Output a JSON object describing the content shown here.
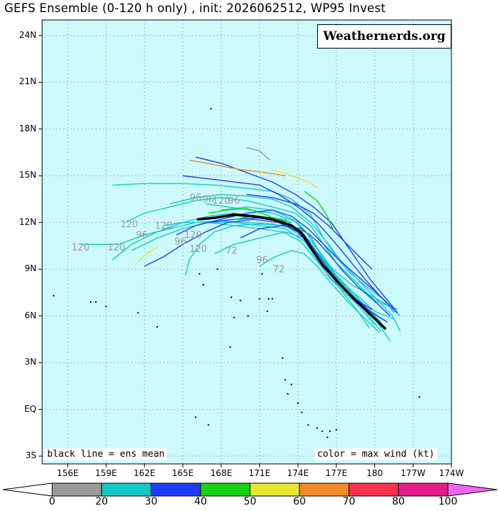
{
  "title": "GEFS Ensemble (0-120 h only) , init: 2026062512, WP95 Invest",
  "watermark": "Weathernerds.org",
  "legend_mean": "black line = ens mean",
  "legend_color": "color = max wind (kt)",
  "map": {
    "lon_min": 154,
    "lon_max": 186,
    "lat_min": -3.5,
    "lat_max": 25,
    "ocean_color": "#ccfafc",
    "grid_lats": [
      -3,
      0,
      3,
      6,
      9,
      12,
      15,
      18,
      21,
      24
    ],
    "grid_lons": [
      156,
      159,
      162,
      165,
      168,
      171,
      174,
      177,
      180,
      183,
      186
    ]
  },
  "lat_labels": [
    "24N",
    "21N",
    "18N",
    "15N",
    "12N",
    "9N",
    "6N",
    "3N",
    "EQ",
    "3S"
  ],
  "lon_labels": [
    "156E",
    "159E",
    "162E",
    "165E",
    "168E",
    "171E",
    "174E",
    "177E",
    "180",
    "177W",
    "174W"
  ],
  "colorbar": {
    "labels": [
      "0",
      "20",
      "30",
      "40",
      "50",
      "60",
      "70",
      "80",
      "100"
    ],
    "colors": [
      "#9a9a9a",
      "#14c8c8",
      "#1e3cff",
      "#14d214",
      "#e6e632",
      "#f08c28",
      "#fa3250",
      "#e61e8c",
      "#f064f0"
    ]
  },
  "hour_labels": [
    {
      "text": "120",
      "lon": 157.0,
      "lat": 10.2
    },
    {
      "text": "120",
      "lon": 159.8,
      "lat": 10.2
    },
    {
      "text": "120",
      "lon": 160.8,
      "lat": 11.7
    },
    {
      "text": "96",
      "lon": 161.8,
      "lat": 11.0
    },
    {
      "text": "120",
      "lon": 163.5,
      "lat": 11.6
    },
    {
      "text": "96",
      "lon": 164.8,
      "lat": 10.6
    },
    {
      "text": "120",
      "lon": 165.8,
      "lat": 11.0
    },
    {
      "text": "120",
      "lon": 166.2,
      "lat": 10.1
    },
    {
      "text": "96",
      "lon": 166.0,
      "lat": 13.4
    },
    {
      "text": "96",
      "lon": 167.0,
      "lat": 13.3
    },
    {
      "text": "120",
      "lon": 168.0,
      "lat": 13.2
    },
    {
      "text": "96",
      "lon": 169.0,
      "lat": 13.2
    },
    {
      "text": "72",
      "lon": 168.8,
      "lat": 10.0
    },
    {
      "text": "96",
      "lon": 171.2,
      "lat": 9.4
    },
    {
      "text": "72",
      "lon": 172.5,
      "lat": 8.8
    }
  ],
  "ensemble_mean": [
    [
      166.2,
      12.2
    ],
    [
      167.5,
      12.3
    ],
    [
      169.0,
      12.5
    ],
    [
      170.5,
      12.4
    ],
    [
      172.0,
      12.2
    ],
    [
      173.5,
      11.8
    ],
    [
      174.3,
      11.3
    ],
    [
      175.0,
      10.4
    ],
    [
      176.0,
      9.2
    ],
    [
      177.2,
      8.1
    ],
    [
      178.5,
      7.0
    ],
    [
      179.8,
      6.0
    ],
    [
      180.8,
      5.2
    ]
  ],
  "tracks": [
    {
      "color": "#14c8c8",
      "points": [
        [
          159.5,
          14.4
        ],
        [
          162,
          14.5
        ],
        [
          165,
          14.5
        ],
        [
          167.5,
          14.4
        ],
        [
          170,
          14.2
        ],
        [
          172,
          14.0
        ],
        [
          173.5,
          13.5
        ],
        [
          175,
          12.5
        ],
        [
          176,
          11.0
        ],
        [
          177,
          9.8
        ],
        [
          178,
          8.8
        ],
        [
          179.5,
          7.8
        ],
        [
          180.8,
          7.0
        ],
        [
          181.5,
          6.2
        ]
      ]
    },
    {
      "color": "#14c8c8",
      "points": [
        [
          157,
          10.6
        ],
        [
          160,
          10.6
        ],
        [
          162,
          11.2
        ],
        [
          164,
          11.6
        ],
        [
          166,
          12.0
        ],
        [
          168,
          12.1
        ],
        [
          170,
          12.0
        ],
        [
          172,
          11.9
        ],
        [
          173.8,
          11.6
        ],
        [
          175,
          10.8
        ],
        [
          176,
          9.8
        ],
        [
          177,
          8.6
        ],
        [
          178.2,
          7.6
        ],
        [
          179.5,
          6.4
        ],
        [
          180.5,
          5.6
        ]
      ]
    },
    {
      "color": "#14c8c8",
      "points": [
        [
          159.5,
          9.6
        ],
        [
          161,
          10.6
        ],
        [
          163,
          11.4
        ],
        [
          165,
          12.0
        ],
        [
          167,
          12.4
        ],
        [
          169,
          12.6
        ],
        [
          171,
          12.4
        ],
        [
          173,
          12.2
        ],
        [
          174.5,
          11.2
        ],
        [
          175.5,
          10.0
        ],
        [
          176.5,
          9.0
        ],
        [
          177.5,
          8.0
        ],
        [
          178.8,
          7.2
        ],
        [
          180,
          6.3
        ],
        [
          181.5,
          5.8
        ]
      ]
    },
    {
      "color": "#14c8c8",
      "points": [
        [
          160.5,
          12.0
        ],
        [
          162,
          12.6
        ],
        [
          164,
          13.0
        ],
        [
          166,
          13.4
        ],
        [
          168,
          13.6
        ],
        [
          170,
          13.4
        ],
        [
          172,
          13.0
        ],
        [
          173.8,
          12.6
        ],
        [
          175,
          11.8
        ],
        [
          176,
          10.6
        ],
        [
          177,
          9.4
        ],
        [
          178,
          8.6
        ],
        [
          179,
          7.8
        ],
        [
          180,
          7.0
        ],
        [
          181.8,
          6.4
        ]
      ]
    },
    {
      "color": "#14c8c8",
      "points": [
        [
          161,
          10.2
        ],
        [
          163,
          11.0
        ],
        [
          165,
          11.6
        ],
        [
          167,
          12.0
        ],
        [
          169,
          12.0
        ],
        [
          171,
          11.8
        ],
        [
          173,
          11.6
        ],
        [
          174.5,
          10.8
        ],
        [
          175.5,
          9.6
        ],
        [
          176.5,
          8.4
        ],
        [
          177.8,
          7.4
        ],
        [
          179,
          6.6
        ],
        [
          180.5,
          5.0
        ]
      ]
    },
    {
      "color": "#14c8c8",
      "points": [
        [
          165.2,
          8.6
        ],
        [
          165.5,
          9.6
        ],
        [
          166.3,
          10.6
        ],
        [
          167.5,
          11.4
        ],
        [
          169,
          11.8
        ],
        [
          171,
          11.9
        ],
        [
          173,
          11.8
        ],
        [
          174.5,
          11.0
        ],
        [
          175.8,
          9.8
        ],
        [
          177,
          8.6
        ],
        [
          178,
          7.6
        ],
        [
          179.2,
          6.6
        ],
        [
          180.2,
          5.6
        ],
        [
          181.2,
          4.4
        ]
      ]
    },
    {
      "color": "#14c8c8",
      "points": [
        [
          164,
          13.2
        ],
        [
          166,
          13.6
        ],
        [
          168,
          13.8
        ],
        [
          170,
          13.7
        ],
        [
          172,
          13.5
        ],
        [
          173.5,
          13.0
        ],
        [
          175,
          12.0
        ],
        [
          176.2,
          10.8
        ],
        [
          177.3,
          9.6
        ],
        [
          178.6,
          8.4
        ],
        [
          180,
          7.2
        ],
        [
          181.4,
          6.0
        ],
        [
          182,
          5.0
        ]
      ]
    },
    {
      "color": "#14c8c8",
      "points": [
        [
          163.5,
          11.8
        ],
        [
          165,
          12.0
        ],
        [
          167,
          12.0
        ],
        [
          169,
          11.8
        ],
        [
          171,
          11.6
        ],
        [
          172.8,
          11.4
        ],
        [
          174.2,
          10.8
        ],
        [
          175.4,
          9.6
        ],
        [
          176.6,
          8.4
        ],
        [
          177.8,
          7.4
        ],
        [
          179,
          6.4
        ],
        [
          180,
          5.4
        ]
      ]
    },
    {
      "color": "#14c8c8",
      "points": [
        [
          167.5,
          10.0
        ],
        [
          169,
          10.6
        ],
        [
          171,
          11.0
        ],
        [
          173,
          11.4
        ],
        [
          174.5,
          11.0
        ],
        [
          175.8,
          9.8
        ],
        [
          177,
          8.8
        ],
        [
          178.2,
          8.0
        ],
        [
          179.5,
          7.4
        ],
        [
          180.8,
          6.8
        ],
        [
          182,
          6.0
        ]
      ]
    },
    {
      "color": "#14c8c8",
      "points": [
        [
          168,
          12.8
        ],
        [
          170,
          13.0
        ],
        [
          172,
          12.8
        ],
        [
          173.6,
          12.2
        ],
        [
          174.8,
          11.2
        ],
        [
          175.8,
          10.0
        ],
        [
          176.8,
          8.8
        ],
        [
          178,
          7.6
        ],
        [
          179.2,
          6.6
        ],
        [
          180.6,
          5.8
        ]
      ]
    },
    {
      "color": "#14c8c8",
      "points": [
        [
          171,
          9.2
        ],
        [
          172.2,
          9.8
        ],
        [
          173.5,
          10.2
        ],
        [
          174.5,
          10.0
        ],
        [
          175.5,
          9.2
        ],
        [
          176.5,
          8.2
        ],
        [
          177.8,
          7.0
        ],
        [
          179.0,
          6.0
        ],
        [
          180.3,
          5.0
        ]
      ]
    },
    {
      "color": "#14c8c8",
      "points": [
        [
          166.8,
          13.2
        ],
        [
          168.5,
          13.0
        ],
        [
          170.2,
          12.8
        ],
        [
          172,
          12.6
        ],
        [
          174,
          12.0
        ],
        [
          175.2,
          10.8
        ],
        [
          176.0,
          9.6
        ],
        [
          176.8,
          8.4
        ],
        [
          177.6,
          7.4
        ],
        [
          178.6,
          6.4
        ],
        [
          179.6,
          5.2
        ]
      ]
    },
    {
      "color": "#1e3cff",
      "points": [
        [
          165,
          15.0
        ],
        [
          167,
          14.8
        ],
        [
          169,
          14.6
        ],
        [
          171,
          14.4
        ],
        [
          172.5,
          13.8
        ],
        [
          174,
          13.0
        ],
        [
          175.5,
          12.0
        ],
        [
          176.8,
          10.8
        ],
        [
          178,
          9.6
        ],
        [
          179.2,
          8.4
        ],
        [
          180.5,
          7.2
        ],
        [
          181.8,
          6.2
        ]
      ]
    },
    {
      "color": "#1e3cff",
      "points": [
        [
          166,
          16.2
        ],
        [
          168,
          15.8
        ],
        [
          170,
          15.2
        ],
        [
          172,
          14.6
        ],
        [
          173.8,
          13.8
        ],
        [
          175.2,
          13.0
        ],
        [
          176.6,
          12.0
        ],
        [
          177.6,
          10.8
        ],
        [
          178.6,
          9.6
        ],
        [
          179.6,
          8.4
        ],
        [
          180.6,
          7.4
        ],
        [
          181.6,
          6.4
        ]
      ]
    },
    {
      "color": "#1e3cff",
      "points": [
        [
          164.5,
          11.2
        ],
        [
          166,
          11.8
        ],
        [
          168,
          12.2
        ],
        [
          170,
          12.6
        ],
        [
          172,
          12.8
        ],
        [
          173.5,
          12.4
        ],
        [
          174.8,
          11.6
        ],
        [
          176,
          10.6
        ],
        [
          177.2,
          9.6
        ],
        [
          178.6,
          8.6
        ],
        [
          180,
          7.6
        ],
        [
          181,
          6.8
        ]
      ]
    },
    {
      "color": "#1e3cff",
      "points": [
        [
          167,
          12.0
        ],
        [
          169,
          12.2
        ],
        [
          171,
          12.3
        ],
        [
          172.8,
          12.1
        ],
        [
          174.2,
          11.5
        ],
        [
          175.2,
          10.4
        ],
        [
          176.2,
          9.2
        ],
        [
          177.4,
          8.0
        ],
        [
          178.6,
          7.0
        ],
        [
          179.8,
          6.2
        ],
        [
          181,
          5.6
        ]
      ]
    },
    {
      "color": "#1e3cff",
      "points": [
        [
          162,
          9.2
        ],
        [
          163.5,
          9.8
        ],
        [
          165,
          10.6
        ],
        [
          166.8,
          11.4
        ],
        [
          168.5,
          12.0
        ],
        [
          170.5,
          12.2
        ],
        [
          172.5,
          12.0
        ],
        [
          174,
          11.4
        ],
        [
          175,
          10.4
        ],
        [
          176,
          9.2
        ],
        [
          177,
          8.2
        ],
        [
          178.3,
          7.2
        ],
        [
          179.8,
          6.4
        ]
      ]
    },
    {
      "color": "#1e3cff",
      "points": [
        [
          170,
          13.8
        ],
        [
          172,
          13.6
        ],
        [
          173.8,
          13.2
        ],
        [
          175.2,
          12.6
        ],
        [
          176.4,
          11.8
        ],
        [
          177.6,
          10.8
        ],
        [
          178.8,
          9.8
        ],
        [
          179.8,
          9.0
        ]
      ]
    },
    {
      "color": "#1e3cff",
      "points": [
        [
          169.5,
          11.0
        ],
        [
          171,
          11.6
        ],
        [
          172.8,
          11.8
        ],
        [
          174.3,
          11.6
        ],
        [
          175.5,
          10.8
        ],
        [
          176.6,
          9.8
        ],
        [
          177.6,
          8.8
        ],
        [
          178.8,
          7.8
        ],
        [
          180.2,
          6.8
        ],
        [
          181.2,
          6.0
        ]
      ]
    },
    {
      "color": "#14d214",
      "points": [
        [
          167,
          12.6
        ],
        [
          168.5,
          12.8
        ],
        [
          170,
          12.9
        ],
        [
          171.5,
          12.5
        ],
        [
          172.8,
          12.0
        ],
        [
          174,
          11.6
        ],
        [
          175,
          11.2
        ]
      ]
    },
    {
      "color": "#14d214",
      "points": [
        [
          174.5,
          14.0
        ],
        [
          175.5,
          13.4
        ],
        [
          176.3,
          12.4
        ],
        [
          176.8,
          11.4
        ]
      ]
    },
    {
      "color": "#14d214",
      "points": [
        [
          169,
          12.2
        ],
        [
          170.5,
          12.4
        ],
        [
          172,
          12.3
        ],
        [
          173.5,
          12.0
        ]
      ]
    },
    {
      "color": "#e6e632",
      "points": [
        [
          172,
          15.4
        ],
        [
          173.5,
          15.0
        ],
        [
          174.8,
          14.6
        ],
        [
          175.6,
          14.2
        ]
      ]
    },
    {
      "color": "#e6e632",
      "points": [
        [
          161.5,
          9.5
        ],
        [
          162.2,
          10.0
        ],
        [
          163,
          10.4
        ]
      ]
    },
    {
      "color": "#f08c28",
      "points": [
        [
          165.5,
          16.0
        ],
        [
          167.5,
          15.7
        ],
        [
          169.5,
          15.4
        ],
        [
          171.5,
          15.2
        ],
        [
          173,
          15.0
        ]
      ]
    },
    {
      "color": "#9a9a9a",
      "points": [
        [
          170,
          16.8
        ],
        [
          171,
          16.6
        ],
        [
          171.8,
          16.0
        ]
      ]
    }
  ],
  "islands": [
    [
      167.2,
      19.3
    ],
    [
      154.9,
      7.3
    ],
    [
      157.8,
      6.9
    ],
    [
      158.2,
      6.9
    ],
    [
      159.0,
      6.6
    ],
    [
      161.5,
      6.2
    ],
    [
      163.0,
      5.3
    ],
    [
      166.3,
      8.7
    ],
    [
      166.6,
      8.0
    ],
    [
      167.7,
      9.0
    ],
    [
      168.8,
      7.2
    ],
    [
      169.5,
      7.0
    ],
    [
      170.1,
      6.0
    ],
    [
      171.0,
      7.1
    ],
    [
      171.7,
      7.1
    ],
    [
      172.0,
      7.1
    ],
    [
      171.2,
      8.7
    ],
    [
      169.0,
      5.9
    ],
    [
      168.7,
      4.0
    ],
    [
      171.6,
      6.3
    ],
    [
      173.0,
      1.9
    ],
    [
      173.5,
      1.6
    ],
    [
      173.2,
      1.0
    ],
    [
      174.0,
      0.4
    ],
    [
      174.3,
      -0.2
    ],
    [
      174.8,
      -1.0
    ],
    [
      175.5,
      -1.2
    ],
    [
      175.9,
      -1.4
    ],
    [
      176.5,
      -1.4
    ],
    [
      176.3,
      -1.8
    ],
    [
      177.0,
      -1.3
    ],
    [
      172.8,
      3.3
    ],
    [
      166.0,
      -0.5
    ],
    [
      167.0,
      -1.0
    ],
    [
      183.5,
      0.8
    ]
  ]
}
